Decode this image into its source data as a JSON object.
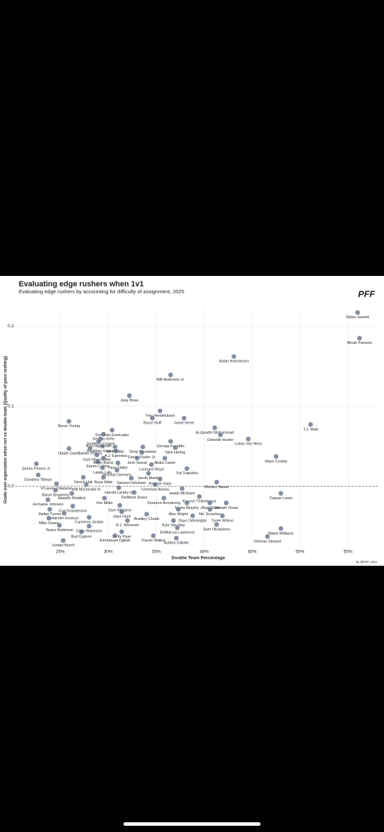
{
  "chart_data": {
    "type": "scatter",
    "title": "Evaluating edge rushers when 1v1",
    "subtitle": "Evaluating edge rushers by accounting for difficulty of assignment, 2025",
    "logo_text": "PFF",
    "caption": "by @PFF_Moo",
    "x_label": "Double Team Percentage",
    "y_label": "Grade over expectation when not vs double-team (Quality of pass rushing)",
    "color": "#5b6b82",
    "grid": true,
    "zero_line": true,
    "xlim": [
      20.3,
      58.1
    ],
    "ylim": [
      -0.077,
      0.222
    ],
    "xticks": [
      {
        "value": 25,
        "label": "25%"
      },
      {
        "value": 30,
        "label": "30%"
      },
      {
        "value": 35,
        "label": "35%"
      },
      {
        "value": 40,
        "label": "40%"
      },
      {
        "value": 45,
        "label": "45%"
      },
      {
        "value": 50,
        "label": "50%"
      },
      {
        "value": 55,
        "label": "55%"
      }
    ],
    "yticks": [
      {
        "value": 0,
        "label": "0.0"
      },
      0.1,
      0.2
    ],
    "point_labels": [
      "Myles Garrett",
      "Micah Parsons",
      "Aidan Hutchinson",
      "Will Anderson Jr.",
      "Joey Bosa",
      "Trey Hendrickson",
      "Bryce Huff",
      "Jared Verse",
      "Byron Young",
      "T.J. Watt",
      "Al-Quadin Muhammad",
      "Danielle Hunter",
      "Lukas Van Ness",
      "Donovan Ezeiruaku",
      "Joshua Uche",
      "Jonathon Cooper",
      "Alex Highsmith",
      "Jonathan Greenard",
      "George Karlaftis",
      "Nik Bonitto",
      "Greg Rousseau",
      "Nick Herbig",
      "Odafe Oweh",
      "Jaelan Phillips",
      "Josh Hines-Allen",
      "Dante Fowler Jr.",
      "Maxx Crosby",
      "Zaven Collins",
      "Abdul Carter",
      "A.J. Epenesa",
      "Brian Burns",
      "Josh Sweat",
      "Yaya Diaby",
      "James Pearce Jr.",
      "Laiatu Latu",
      "Leonard Floyd",
      "Tuli Tuipulotu",
      "Micheal Clemons",
      "Jacob Martin",
      "Dondrea Tillman",
      "Derick Hall",
      "Boye Mafe",
      "Samson Ebukam",
      "Rashan Gary",
      "Montez Sweat",
      "K'Lavon Chaisson",
      "Will McDonald IV",
      "Harold Landry III",
      "Uchenna Nwosu",
      "Isaiah McGuire",
      "Baron Browning",
      "Tyquan Lewis",
      "Haason Reddick",
      "DreMont Jones",
      "Kayvon Thibodeaux",
      "Von Miller",
      "Dorance Armstrong",
      "Jermaine Johnson",
      "Myles Murphy",
      "Jihad Ward",
      "Joseph Ossai",
      "Sam Williams",
      "Carl Granderson",
      "Dallas Turner",
      "Alex Wright",
      "Nic Scourton",
      "Malcolm Koonce",
      "Jalyn Hunt",
      "Bradley Chubb",
      "Dayo Odeyingbo",
      "Tyree Wilson",
      "Mike Green",
      "Cameron Jordan",
      "D.J. Wonnum",
      "Kyle Van Noy",
      "Sam Okuayinou",
      "Tavius Robinson",
      "Chop Robinson",
      "DeMarcus Lawrence",
      "Mykel Williams",
      "Bud Dupree",
      "Kwity Paye",
      "Emmanuel Ogbah",
      "Travon Walker",
      "Ashton Gillotte",
      "Shemar Stewart",
      "Jordan Burch"
    ],
    "x": [
      56.0,
      56.2,
      43.1,
      36.5,
      32.2,
      35.4,
      34.6,
      37.9,
      25.9,
      51.1,
      41.1,
      41.7,
      44.6,
      30.4,
      29.5,
      29.2,
      29.0,
      29.4,
      36.5,
      30.7,
      33.6,
      37.0,
      25.9,
      28.1,
      28.8,
      33.5,
      47.5,
      28.9,
      35.9,
      30.8,
      29.5,
      33.0,
      31.0,
      22.5,
      29.4,
      34.5,
      38.2,
      30.9,
      34.2,
      22.7,
      27.4,
      29.5,
      32.4,
      35.4,
      41.3,
      24.6,
      27.7,
      31.1,
      34.9,
      37.7,
      24.5,
      48.0,
      26.2,
      32.7,
      39.5,
      29.6,
      35.8,
      23.7,
      38.2,
      40.6,
      42.3,
      31.2,
      26.3,
      23.9,
      37.3,
      40.6,
      25.4,
      31.4,
      34.0,
      38.8,
      41.9,
      23.8,
      28.0,
      32.0,
      36.8,
      41.3,
      24.9,
      28.0,
      37.2,
      48.0,
      27.2,
      31.4,
      30.7,
      34.7,
      37.1,
      46.6,
      25.3
    ],
    "values": [
      0.217,
      0.185,
      0.162,
      0.139,
      0.113,
      0.094,
      0.085,
      0.085,
      0.081,
      0.077,
      0.073,
      0.064,
      0.059,
      0.07,
      0.065,
      0.059,
      0.056,
      0.05,
      0.056,
      0.049,
      0.049,
      0.048,
      0.047,
      0.047,
      0.039,
      0.042,
      0.037,
      0.031,
      0.035,
      0.044,
      0.035,
      0.035,
      0.029,
      0.028,
      0.023,
      0.027,
      0.022,
      0.02,
      0.016,
      0.014,
      0.011,
      0.011,
      0.01,
      0.009,
      0.005,
      0.003,
      0.002,
      -0.002,
      0.002,
      -0.003,
      -0.005,
      -0.009,
      -0.009,
      -0.008,
      -0.013,
      -0.015,
      -0.015,
      -0.017,
      -0.021,
      -0.021,
      -0.021,
      -0.024,
      -0.025,
      -0.029,
      -0.029,
      -0.029,
      -0.034,
      -0.032,
      -0.035,
      -0.037,
      -0.037,
      -0.04,
      -0.039,
      -0.043,
      -0.043,
      -0.048,
      -0.049,
      -0.05,
      -0.052,
      -0.053,
      -0.057,
      -0.057,
      -0.062,
      -0.062,
      -0.065,
      -0.063,
      -0.068
    ]
  }
}
